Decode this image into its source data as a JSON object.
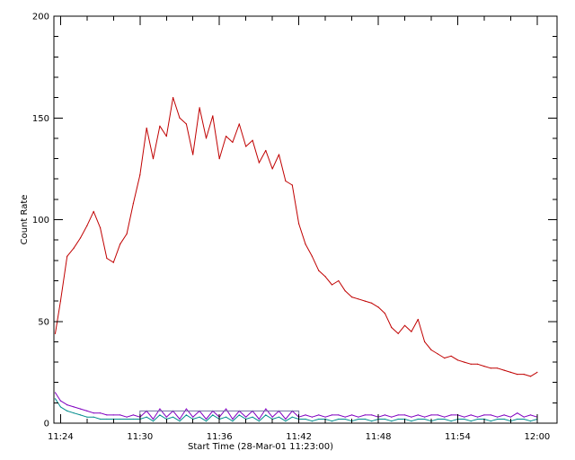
{
  "chart_data": {
    "type": "line",
    "xlabel": "Start Time (28-Mar-01 11:23:00)",
    "ylabel": "Count Rate",
    "x_unit": "minutes past 11:23:00",
    "xlim": [
      0.5,
      38.5
    ],
    "ylim": [
      0,
      200
    ],
    "x_ticks": [
      {
        "at": 1,
        "label": "11:24"
      },
      {
        "at": 7,
        "label": "11:30"
      },
      {
        "at": 13,
        "label": "11:36"
      },
      {
        "at": 19,
        "label": "11:42"
      },
      {
        "at": 25,
        "label": "11:48"
      },
      {
        "at": 31,
        "label": "11:54"
      },
      {
        "at": 37,
        "label": "12:00"
      }
    ],
    "y_ticks": [
      0,
      50,
      100,
      150,
      200
    ],
    "grid": false,
    "legend": "none",
    "highlight_box": {
      "x": [
        7.0,
        19.0
      ],
      "y": [
        0,
        6
      ]
    },
    "series": [
      {
        "color": "#c00000",
        "x": [
          0.6,
          1.0,
          1.5,
          2.0,
          2.5,
          3.0,
          3.5,
          4.0,
          4.5,
          5.0,
          5.5,
          6.0,
          6.5,
          7.0,
          7.5,
          8.0,
          8.5,
          9.0,
          9.5,
          10.0,
          10.5,
          11.0,
          11.5,
          12.0,
          12.5,
          13.0,
          13.5,
          14.0,
          14.5,
          15.0,
          15.5,
          16.0,
          16.5,
          17.0,
          17.5,
          18.0,
          18.5,
          19.0,
          19.5,
          20.0,
          20.5,
          21.0,
          21.5,
          22.0,
          22.5,
          23.0,
          23.5,
          24.0,
          24.5,
          25.0,
          25.5,
          26.0,
          26.5,
          27.0,
          27.5,
          28.0,
          28.5,
          29.0,
          29.5,
          30.0,
          30.5,
          31.0,
          31.5,
          32.0,
          32.5,
          33.0,
          33.5,
          34.0,
          34.5,
          35.0,
          35.5,
          36.0,
          36.5,
          37.0
        ],
        "y": [
          44,
          60,
          82,
          86,
          91,
          97,
          104,
          96,
          81,
          79,
          88,
          93,
          108,
          122,
          145,
          130,
          146,
          141,
          160,
          150,
          147,
          132,
          155,
          140,
          151,
          130,
          141,
          138,
          147,
          136,
          139,
          128,
          134,
          125,
          132,
          119,
          117,
          98,
          88,
          82,
          75,
          72,
          68,
          70,
          65,
          62,
          61,
          60,
          59,
          57,
          54,
          47,
          44,
          48,
          45,
          51,
          40,
          36,
          34,
          32,
          33,
          31,
          30,
          29,
          29,
          28,
          27,
          27,
          26,
          25,
          24,
          24,
          23,
          25
        ]
      },
      {
        "color": "#8000c0",
        "x": [
          0.6,
          1.0,
          1.5,
          2.0,
          2.5,
          3.0,
          3.5,
          4.0,
          4.5,
          5.0,
          5.5,
          6.0,
          6.5,
          7.0,
          7.5,
          8.0,
          8.5,
          9.0,
          9.5,
          10.0,
          10.5,
          11.0,
          11.5,
          12.0,
          12.5,
          13.0,
          13.5,
          14.0,
          14.5,
          15.0,
          15.5,
          16.0,
          16.5,
          17.0,
          17.5,
          18.0,
          18.5,
          19.0,
          19.5,
          20.0,
          20.5,
          21.0,
          21.5,
          22.0,
          22.5,
          23.0,
          23.5,
          24.0,
          24.5,
          25.0,
          25.5,
          26.0,
          26.5,
          27.0,
          27.5,
          28.0,
          28.5,
          29.0,
          29.5,
          30.0,
          30.5,
          31.0,
          31.5,
          32.0,
          32.5,
          33.0,
          33.5,
          34.0,
          34.5,
          35.0,
          35.5,
          36.0,
          36.5,
          37.0
        ],
        "y": [
          15,
          11,
          9,
          8,
          7,
          6,
          5,
          5,
          4,
          4,
          4,
          3,
          4,
          3,
          6,
          2,
          7,
          3,
          6,
          2,
          7,
          3,
          6,
          2,
          6,
          3,
          7,
          2,
          6,
          3,
          6,
          2,
          7,
          3,
          6,
          2,
          6,
          3,
          4,
          3,
          4,
          3,
          4,
          4,
          3,
          4,
          3,
          4,
          4,
          3,
          4,
          3,
          4,
          4,
          3,
          4,
          3,
          4,
          4,
          3,
          4,
          4,
          3,
          4,
          3,
          4,
          4,
          3,
          4,
          3,
          5,
          3,
          4,
          3
        ]
      },
      {
        "color": "#008c8c",
        "x": [
          0.6,
          1.0,
          1.5,
          2.0,
          2.5,
          3.0,
          3.5,
          4.0,
          4.5,
          5.0,
          5.5,
          6.0,
          6.5,
          7.0,
          7.5,
          8.0,
          8.5,
          9.0,
          9.5,
          10.0,
          10.5,
          11.0,
          11.5,
          12.0,
          12.5,
          13.0,
          13.5,
          14.0,
          14.5,
          15.0,
          15.5,
          16.0,
          16.5,
          17.0,
          17.5,
          18.0,
          18.5,
          19.0,
          19.5,
          20.0,
          20.5,
          21.0,
          21.5,
          22.0,
          22.5,
          23.0,
          23.5,
          24.0,
          24.5,
          25.0,
          25.5,
          26.0,
          26.5,
          27.0,
          27.5,
          28.0,
          28.5,
          29.0,
          29.5,
          30.0,
          30.5,
          31.0,
          31.5,
          32.0,
          32.5,
          33.0,
          33.5,
          34.0,
          34.5,
          35.0,
          35.5,
          36.0,
          36.5,
          37.0
        ],
        "y": [
          12,
          8,
          6,
          5,
          4,
          3,
          3,
          2,
          2,
          2,
          2,
          2,
          2,
          2,
          3,
          1,
          4,
          2,
          3,
          1,
          4,
          2,
          3,
          1,
          4,
          2,
          3,
          1,
          4,
          2,
          3,
          1,
          4,
          2,
          3,
          1,
          3,
          2,
          2,
          1,
          2,
          2,
          1,
          2,
          2,
          1,
          2,
          2,
          1,
          2,
          2,
          1,
          2,
          2,
          1,
          2,
          2,
          1,
          2,
          2,
          1,
          2,
          2,
          1,
          2,
          2,
          1,
          2,
          2,
          1,
          2,
          2,
          1,
          2
        ]
      }
    ]
  }
}
